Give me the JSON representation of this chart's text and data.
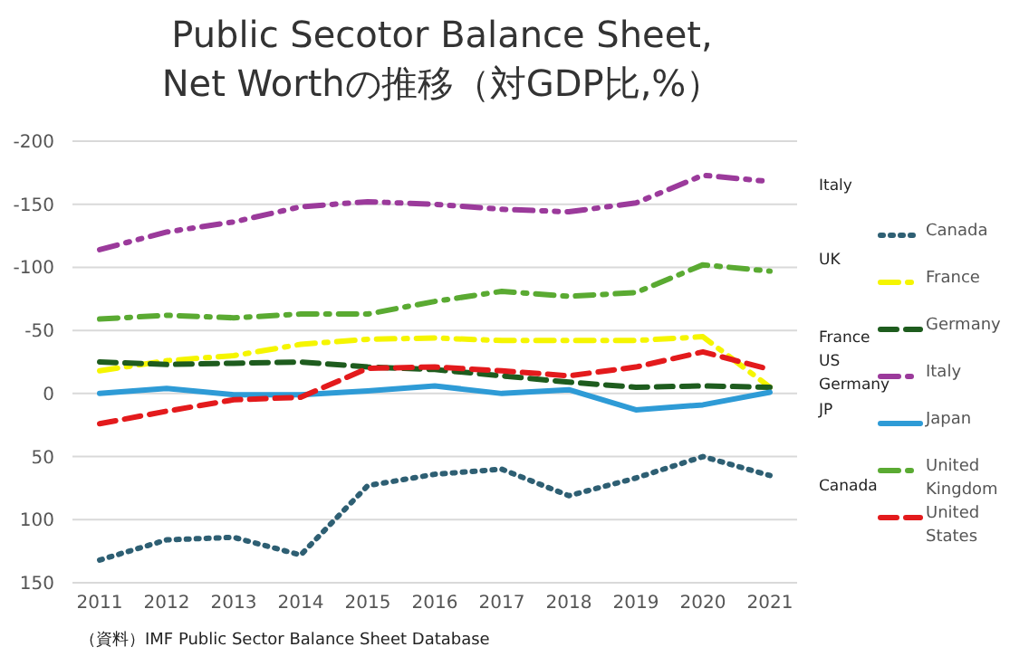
{
  "chart_data": {
    "type": "line",
    "title": "Public Secotor Balance Sheet,\nNet Worthの推移（対GDP比,%）",
    "categories": [
      "2011",
      "2012",
      "2013",
      "2014",
      "2015",
      "2016",
      "2017",
      "2018",
      "2019",
      "2020",
      "2021"
    ],
    "ylim": [
      150,
      -200
    ],
    "yticks": [
      -200,
      -150,
      -100,
      -50,
      0,
      50,
      100,
      150
    ],
    "grid": "y",
    "legend": "right",
    "marker": "none",
    "series": [
      {
        "name": "Canada",
        "color": "#2e5f73",
        "line_style": "dotted",
        "values": [
          132,
          116,
          114,
          128,
          73,
          64,
          60,
          81,
          67,
          50,
          65
        ]
      },
      {
        "name": "France",
        "color": "#f5f500",
        "line_style": "dashdot",
        "values": [
          -18,
          -26,
          -30,
          -39,
          -43,
          -44,
          -42,
          -42,
          -42,
          -45,
          -5
        ]
      },
      {
        "name": "Germany",
        "color": "#1e5c1e",
        "line_style": "dashed",
        "values": [
          -25,
          -23,
          -24,
          -25,
          -21,
          -19,
          -14,
          -9,
          -5,
          -6,
          -5
        ]
      },
      {
        "name": "Italy",
        "color": "#9b3a9b",
        "line_style": "dashdotdot",
        "values": [
          -114,
          -128,
          -136,
          -148,
          -152,
          -150,
          -146,
          -144,
          -151,
          -173,
          -168
        ]
      },
      {
        "name": "Japan",
        "color": "#2e9bd6",
        "line_style": "solid",
        "values": [
          0,
          -4,
          1,
          1,
          -2,
          -6,
          0,
          -3,
          13,
          9,
          -1
        ]
      },
      {
        "name": "United Kingdom",
        "color": "#5aaa32",
        "line_style": "dashdot",
        "values": [
          -59,
          -62,
          -60,
          -63,
          -63,
          -73,
          -81,
          -77,
          -80,
          -102,
          -97
        ]
      },
      {
        "name": "United States",
        "color": "#e31a1c",
        "line_style": "dashed",
        "values": [
          24,
          14,
          5,
          3,
          -20,
          -21,
          -18,
          -14,
          -21,
          -33,
          -19
        ]
      }
    ],
    "annotations": [
      "Italy",
      "UK",
      "France",
      "US",
      "Germany",
      "JP",
      "Canada",
      "（資料）IMF Public Sector Balance Sheet Database"
    ]
  }
}
